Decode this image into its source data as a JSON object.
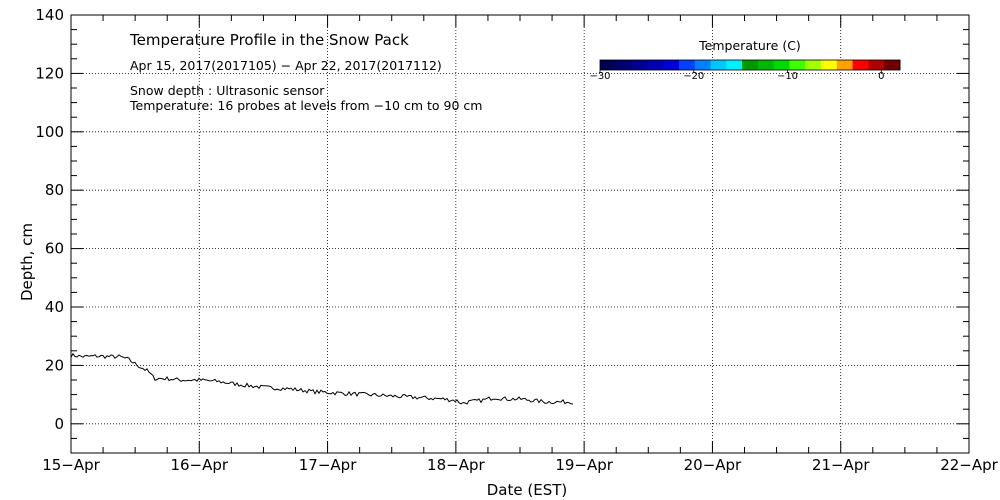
{
  "chart_data": {
    "type": "line",
    "title": "Temperature Profile in the Snow Pack",
    "subtitle": "Apr 15, 2017(2017105) − Apr 22, 2017(2017112)",
    "annotations": [
      "Snow depth : Ultrasonic sensor",
      "Temperature: 16 probes at levels from −10 cm to 90 cm"
    ],
    "xlabel": "Date (EST)",
    "ylabel": "Depth, cm",
    "x_ticks": [
      "15−Apr",
      "16−Apr",
      "17−Apr",
      "18−Apr",
      "19−Apr",
      "20−Apr",
      "21−Apr",
      "22−Apr"
    ],
    "x_range_days": [
      0,
      7
    ],
    "ylim": [
      -10,
      140
    ],
    "y_ticks": [
      0,
      20,
      40,
      60,
      80,
      100,
      120,
      140
    ],
    "grid": true,
    "series": [
      {
        "color": "#000000",
        "x": [
          0.0,
          0.1,
          0.2,
          0.3,
          0.38,
          0.45,
          0.52,
          0.6,
          0.65,
          0.75,
          0.85,
          1.0,
          1.15,
          1.3,
          1.5,
          1.7,
          1.9,
          2.1,
          2.3,
          2.5,
          2.7,
          2.9,
          3.0,
          3.05,
          3.1,
          3.2,
          3.3,
          3.4,
          3.5,
          3.6,
          3.7,
          3.8,
          3.92
        ],
        "y": [
          23.5,
          23.0,
          23.2,
          23.0,
          23.0,
          22.0,
          20.0,
          18.0,
          15.5,
          15.5,
          15.0,
          15.0,
          14.5,
          13.5,
          12.5,
          12.0,
          11.0,
          10.5,
          10.0,
          9.5,
          9.0,
          8.5,
          8.0,
          7.0,
          7.5,
          8.0,
          9.0,
          8.5,
          8.5,
          8.0,
          7.5,
          7.5,
          7.5
        ]
      }
    ],
    "colorbar": {
      "title": "Temperature (C)",
      "ticks": [
        "−30",
        "−20",
        "−10",
        "0"
      ],
      "tick_values": [
        -30,
        -20,
        -10,
        0
      ],
      "range": [
        -30,
        2
      ],
      "colors": [
        "#000050",
        "#000070",
        "#000090",
        "#0000b0",
        "#0000d8",
        "#0040ff",
        "#0080ff",
        "#00c8ff",
        "#00f0ff",
        "#009a00",
        "#00b800",
        "#00d800",
        "#40ff00",
        "#a0ff00",
        "#ffff00",
        "#ffa000",
        "#ff0000",
        "#b00000",
        "#700000"
      ]
    }
  }
}
